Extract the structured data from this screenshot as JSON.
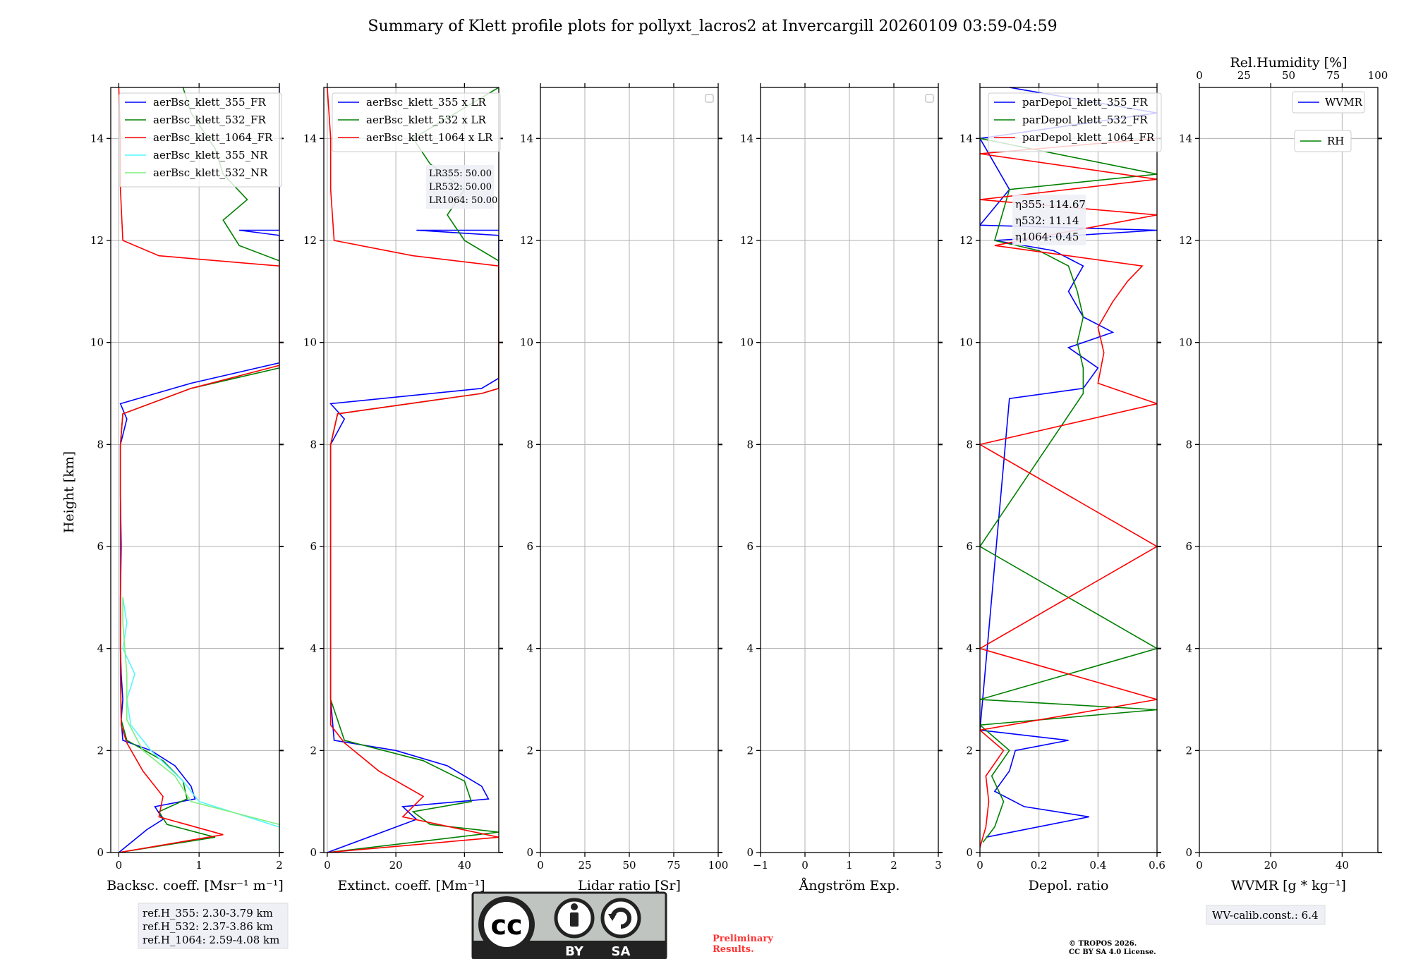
{
  "title": "Summary of Klett profile plots for pollyxt_lacros2 at Invercargill 20260109 03:59-04:59",
  "y_axis_label": "Height [km]",
  "colors": {
    "c355": "#0000ff",
    "c532": "#008000",
    "c1064": "#ff0000",
    "nr355": "#55f7ff",
    "nr532": "#7ff07f"
  },
  "chart_data": [
    {
      "type": "line",
      "id": "bsc",
      "xlabel": "Backsc. coeff. [Msr⁻¹ m⁻¹]",
      "xlim": [
        -0.1,
        2
      ],
      "xticks": [
        0,
        1,
        2
      ],
      "ylim": [
        0,
        15
      ],
      "yticks": [
        0,
        2,
        4,
        6,
        8,
        10,
        12,
        14
      ],
      "legend": [
        "aerBsc_klett_355_FR",
        "aerBsc_klett_532_FR",
        "aerBsc_klett_1064_FR",
        "aerBsc_klett_355_NR",
        "aerBsc_klett_532_NR"
      ],
      "series": [
        {
          "name": "aerBsc_klett_355_FR",
          "color": "#0000ff",
          "points": [
            [
              0,
              0
            ],
            [
              0.35,
              0.45
            ],
            [
              0.55,
              0.65
            ],
            [
              0.45,
              0.9
            ],
            [
              0.95,
              1.05
            ],
            [
              0.9,
              1.3
            ],
            [
              0.7,
              1.7
            ],
            [
              0.4,
              2.0
            ],
            [
              0.05,
              2.2
            ],
            [
              0.03,
              2.6
            ],
            [
              0.05,
              3.0
            ],
            [
              0.03,
              3.5
            ],
            [
              0.02,
              4.0
            ],
            [
              0.02,
              5.0
            ],
            [
              0.03,
              6.0
            ],
            [
              0.02,
              7.0
            ],
            [
              0.02,
              8.0
            ],
            [
              0.1,
              8.5
            ],
            [
              0.02,
              8.8
            ],
            [
              0.9,
              9.2
            ],
            [
              2,
              9.6
            ],
            [
              2,
              11.5
            ],
            [
              2,
              12.1
            ],
            [
              1.5,
              12.2
            ],
            [
              2,
              12.2
            ],
            [
              2,
              15
            ]
          ]
        },
        {
          "name": "aerBsc_klett_532_FR",
          "color": "#008000",
          "points": [
            [
              0,
              0
            ],
            [
              1.2,
              0.3
            ],
            [
              0.6,
              0.55
            ],
            [
              0.5,
              0.8
            ],
            [
              0.85,
              1.05
            ],
            [
              0.8,
              1.4
            ],
            [
              0.55,
              1.8
            ],
            [
              0.1,
              2.2
            ],
            [
              0.03,
              2.6
            ],
            [
              0.02,
              3.5
            ],
            [
              0.02,
              5.0
            ],
            [
              0.02,
              6.5
            ],
            [
              0.02,
              8.0
            ],
            [
              0.05,
              8.6
            ],
            [
              0.9,
              9.1
            ],
            [
              2,
              9.5
            ],
            [
              2,
              11.6
            ],
            [
              1.5,
              11.9
            ],
            [
              1.3,
              12.4
            ],
            [
              1.6,
              12.8
            ],
            [
              1.3,
              13.3
            ],
            [
              1.2,
              13.8
            ],
            [
              0.9,
              14.5
            ],
            [
              0.8,
              15
            ]
          ]
        },
        {
          "name": "aerBsc_klett_1064_FR",
          "color": "#ff0000",
          "points": [
            [
              0,
              0
            ],
            [
              1.3,
              0.35
            ],
            [
              0.5,
              0.7
            ],
            [
              0.55,
              1.1
            ],
            [
              0.3,
              1.6
            ],
            [
              0.1,
              2.15
            ],
            [
              0.03,
              2.5
            ],
            [
              0.02,
              4.0
            ],
            [
              0.02,
              6.0
            ],
            [
              0.02,
              8.0
            ],
            [
              0.05,
              8.6
            ],
            [
              0.9,
              9.1
            ],
            [
              2,
              9.55
            ],
            [
              2,
              11.5
            ],
            [
              0.5,
              11.7
            ],
            [
              0.05,
              12.0
            ],
            [
              0.02,
              13.0
            ],
            [
              0.02,
              14.0
            ],
            [
              0,
              15
            ]
          ]
        },
        {
          "name": "aerBsc_klett_355_NR",
          "color": "#55f7ff",
          "points": [
            [
              2,
              0.5
            ],
            [
              1.0,
              1.0
            ],
            [
              0.8,
              1.4
            ],
            [
              0.4,
              2.0
            ],
            [
              0.15,
              2.5
            ],
            [
              0.1,
              3.0
            ],
            [
              0.2,
              3.5
            ],
            [
              0.05,
              4.0
            ],
            [
              0.1,
              4.5
            ],
            [
              0.05,
              5.0
            ]
          ]
        },
        {
          "name": "aerBsc_klett_532_NR",
          "color": "#7ff07f",
          "points": [
            [
              2,
              0.1
            ],
            [
              2,
              0.55
            ],
            [
              0.9,
              1.0
            ],
            [
              0.7,
              1.5
            ],
            [
              0.3,
              2.0
            ],
            [
              0.1,
              2.6
            ],
            [
              0.1,
              3.5
            ],
            [
              0.05,
              4.5
            ],
            [
              0.05,
              5.0
            ]
          ]
        }
      ]
    },
    {
      "type": "line",
      "id": "ext",
      "xlabel": "Extinct. coeff. [Mm⁻¹]",
      "xlim": [
        -1,
        50
      ],
      "xticks": [
        0,
        20,
        40
      ],
      "ylim": [
        0,
        15
      ],
      "yticks": [
        0,
        2,
        4,
        6,
        8,
        10,
        12,
        14
      ],
      "legend": [
        "aerBsc_klett_355 x LR",
        "aerBsc_klett_532 x LR",
        "aerBsc_klett_1064 x LR"
      ],
      "annotation": [
        "LR355: 50.00",
        "LR532: 50.00",
        "LR1064: 50.00"
      ],
      "series": [
        {
          "name": "aerBsc_klett_355 x LR",
          "color": "#0000ff",
          "points": [
            [
              0,
              0
            ],
            [
              18,
              0.45
            ],
            [
              26,
              0.65
            ],
            [
              22,
              0.9
            ],
            [
              47,
              1.05
            ],
            [
              45,
              1.3
            ],
            [
              35,
              1.7
            ],
            [
              20,
              2.0
            ],
            [
              2,
              2.2
            ],
            [
              1,
              3.0
            ],
            [
              1,
              4.0
            ],
            [
              1,
              6.0
            ],
            [
              1,
              8.0
            ],
            [
              5,
              8.5
            ],
            [
              1,
              8.8
            ],
            [
              45,
              9.1
            ],
            [
              50,
              9.3
            ],
            [
              50,
              12.1
            ],
            [
              26,
              12.2
            ],
            [
              50,
              12.2
            ]
          ]
        },
        {
          "name": "aerBsc_klett_532 x LR",
          "color": "#008000",
          "points": [
            [
              0,
              0
            ],
            [
              50,
              0.4
            ],
            [
              30,
              0.55
            ],
            [
              25,
              0.8
            ],
            [
              42,
              1.0
            ],
            [
              40,
              1.4
            ],
            [
              28,
              1.8
            ],
            [
              5,
              2.2
            ],
            [
              1,
              3.0
            ],
            [
              1,
              5.0
            ],
            [
              1,
              8.0
            ],
            [
              3,
              8.6
            ],
            [
              45,
              9.0
            ],
            [
              50,
              9.1
            ],
            [
              50,
              11.6
            ],
            [
              40,
              12.0
            ],
            [
              35,
              12.5
            ],
            [
              40,
              13.0
            ],
            [
              30,
              13.5
            ],
            [
              25,
              14.0
            ],
            [
              50,
              15
            ]
          ]
        },
        {
          "name": "aerBsc_klett_1064 x LR",
          "color": "#ff0000",
          "points": [
            [
              0,
              0
            ],
            [
              50,
              0.3
            ],
            [
              22,
              0.7
            ],
            [
              28,
              1.1
            ],
            [
              15,
              1.6
            ],
            [
              5,
              2.15
            ],
            [
              1,
              2.5
            ],
            [
              1,
              5.0
            ],
            [
              1,
              8.0
            ],
            [
              3,
              8.6
            ],
            [
              45,
              9.0
            ],
            [
              50,
              9.1
            ],
            [
              50,
              11.5
            ],
            [
              25,
              11.7
            ],
            [
              2,
              12.0
            ],
            [
              1,
              13.0
            ],
            [
              1,
              14.0
            ],
            [
              0,
              15
            ]
          ]
        }
      ]
    },
    {
      "type": "line",
      "id": "lr",
      "xlabel": "Lidar ratio [Sr]",
      "xlim": [
        0,
        100
      ],
      "xticks": [
        0,
        25,
        50,
        75,
        100
      ],
      "ylim": [
        0,
        15
      ],
      "yticks": [
        0,
        2,
        4,
        6,
        8,
        10,
        12,
        14
      ],
      "series": []
    },
    {
      "type": "line",
      "id": "ang",
      "xlabel": "Ångström Exp.",
      "xlim": [
        -1,
        3
      ],
      "xticks": [
        -1,
        0,
        1,
        2,
        3
      ],
      "ylim": [
        0,
        15
      ],
      "yticks": [
        0,
        2,
        4,
        6,
        8,
        10,
        12,
        14
      ],
      "series": []
    },
    {
      "type": "line",
      "id": "depol",
      "xlabel": "Depol. ratio",
      "xlim": [
        0,
        0.6
      ],
      "xticks": [
        0.0,
        0.2,
        0.4,
        0.6
      ],
      "ylim": [
        0,
        15
      ],
      "yticks": [
        0,
        2,
        4,
        6,
        8,
        10,
        12,
        14
      ],
      "legend": [
        "parDepol_klett_355_FR",
        "parDepol_klett_532_FR",
        "parDepol_klett_1064_FR"
      ],
      "annotation": [
        "η355: 114.67",
        "η532: 11.14",
        "η1064: 0.45"
      ],
      "series": [
        {
          "name": "parDepol_klett_355_FR",
          "color": "#0000ff",
          "points": [
            [
              0.02,
              0.3
            ],
            [
              0.37,
              0.7
            ],
            [
              0.15,
              0.9
            ],
            [
              0.05,
              1.2
            ],
            [
              0.1,
              1.6
            ],
            [
              0.12,
              2.0
            ],
            [
              0.3,
              2.2
            ],
            [
              0.0,
              2.4
            ],
            [
              0.1,
              8.9
            ],
            [
              0.35,
              9.1
            ],
            [
              0.4,
              9.5
            ],
            [
              0.3,
              9.9
            ],
            [
              0.45,
              10.2
            ],
            [
              0.35,
              10.5
            ],
            [
              0.3,
              11.0
            ],
            [
              0.35,
              11.5
            ],
            [
              0.25,
              11.8
            ],
            [
              0.05,
              12.0
            ],
            [
              0.6,
              12.2
            ],
            [
              0.0,
              12.3
            ],
            [
              0.1,
              13.0
            ],
            [
              0.0,
              14.0
            ],
            [
              0.6,
              14.5
            ],
            [
              0.1,
              15
            ]
          ]
        },
        {
          "name": "parDepol_klett_532_FR",
          "color": "#008000",
          "points": [
            [
              0.01,
              0.2
            ],
            [
              0.05,
              0.5
            ],
            [
              0.08,
              1.0
            ],
            [
              0.04,
              1.5
            ],
            [
              0.1,
              2.0
            ],
            [
              0.0,
              2.5
            ],
            [
              0.6,
              2.8
            ],
            [
              0.0,
              3.0
            ],
            [
              0.6,
              4.0
            ],
            [
              0.0,
              6.0
            ],
            [
              0.35,
              9.0
            ],
            [
              0.35,
              9.5
            ],
            [
              0.33,
              10.0
            ],
            [
              0.35,
              10.5
            ],
            [
              0.33,
              11.0
            ],
            [
              0.3,
              11.5
            ],
            [
              0.2,
              11.8
            ],
            [
              0.05,
              12.0
            ],
            [
              0.1,
              13.0
            ],
            [
              0.6,
              13.3
            ],
            [
              0.0,
              14.0
            ]
          ]
        },
        {
          "name": "parDepol_klett_1064_FR",
          "color": "#ff0000",
          "points": [
            [
              0.0,
              0.1
            ],
            [
              0.02,
              0.5
            ],
            [
              0.03,
              1.0
            ],
            [
              0.02,
              1.5
            ],
            [
              0.08,
              2.0
            ],
            [
              0.0,
              2.4
            ],
            [
              0.6,
              3.0
            ],
            [
              0.0,
              4.0
            ],
            [
              0.6,
              6.0
            ],
            [
              0.0,
              8.0
            ],
            [
              0.6,
              8.8
            ],
            [
              0.4,
              9.2
            ],
            [
              0.42,
              9.8
            ],
            [
              0.4,
              10.3
            ],
            [
              0.45,
              10.8
            ],
            [
              0.5,
              11.2
            ],
            [
              0.55,
              11.5
            ],
            [
              0.05,
              11.9
            ],
            [
              0.6,
              12.5
            ],
            [
              0.0,
              12.8
            ],
            [
              0.6,
              13.2
            ],
            [
              0.0,
              13.7
            ],
            [
              0.6,
              14.0
            ]
          ]
        }
      ]
    },
    {
      "type": "line",
      "id": "wv",
      "xlabel": "WVMR [g * kg⁻¹]",
      "xlim": [
        0,
        50
      ],
      "xticks": [
        0,
        20,
        40
      ],
      "top_xlabel": "Rel.Humidity [%]",
      "top_xlim": [
        0,
        100
      ],
      "top_xticks": [
        0,
        25,
        50,
        75,
        100
      ],
      "ylim": [
        0,
        15
      ],
      "yticks": [
        0,
        2,
        4,
        6,
        8,
        10,
        12,
        14
      ],
      "legend": [
        "WVMR",
        "RH"
      ],
      "series": []
    }
  ],
  "ref_heights": [
    "ref.H_355: 2.30-3.79 km",
    "ref.H_532: 2.37-3.86 km",
    "ref.H_1064: 2.59-4.08 km"
  ],
  "wv_calib": "WV-calib.const.: 6.4",
  "license_badge": {
    "cc": "cc",
    "by": "BY",
    "sa": "SA"
  },
  "preliminary": [
    "Preliminary",
    "Results."
  ],
  "copyright": [
    "© TROPOS 2026.",
    "CC BY SA 4.0 License."
  ]
}
